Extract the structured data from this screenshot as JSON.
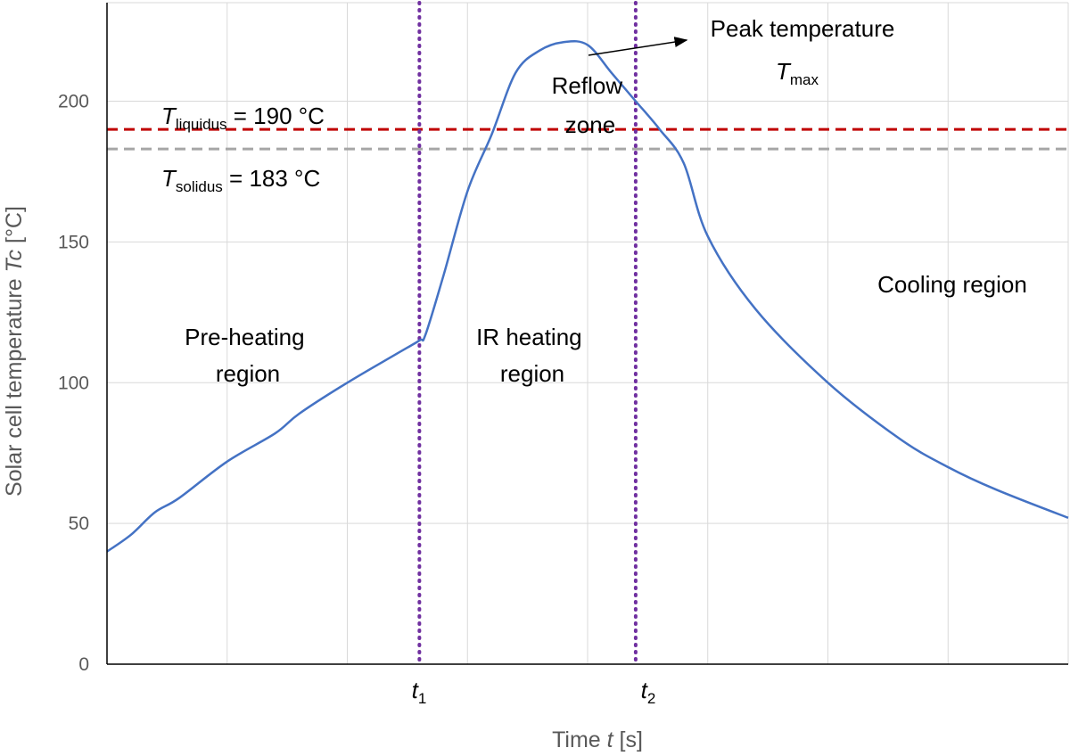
{
  "chart_data": {
    "type": "line",
    "title": "",
    "xlabel": {
      "prefix": "Time ",
      "var": "t",
      "suffix": " [s]"
    },
    "ylabel": {
      "prefix": "Solar cell temperature ",
      "var": "Tc",
      "suffix": " [°C]"
    },
    "xlim": [
      0,
      8
    ],
    "ylim": [
      0,
      235
    ],
    "y_ticks": [
      0,
      50,
      100,
      150,
      200
    ],
    "x_grid": [
      1,
      2,
      3,
      4,
      5,
      6,
      7,
      8
    ],
    "y_grid": [
      50,
      100,
      150,
      200,
      235
    ],
    "grid": true,
    "legend": "none",
    "series": [
      {
        "color": "#4472c4",
        "x": [
          0,
          0.2,
          0.4,
          0.6,
          1.0,
          1.4,
          1.6,
          2.0,
          2.4,
          2.6,
          2.65,
          2.8,
          3.0,
          3.2,
          3.4,
          3.6,
          3.8,
          4.0,
          4.2,
          4.4,
          4.6,
          4.8,
          5.0,
          5.4,
          6.0,
          6.6,
          7.0,
          7.4,
          8.0
        ],
        "y": [
          40,
          46,
          54,
          59,
          72,
          82,
          89,
          100,
          110,
          115,
          117,
          138,
          168,
          188,
          210,
          218,
          221,
          220,
          210,
          200,
          190,
          178,
          152,
          126,
          100,
          80,
          70,
          62,
          52
        ]
      }
    ],
    "reference_lines": [
      {
        "orientation": "horizontal",
        "y": 190,
        "color": "#c00000",
        "style": "dashed"
      },
      {
        "orientation": "horizontal",
        "y": 183,
        "color": "#a6a6a6",
        "style": "dashed"
      },
      {
        "orientation": "vertical",
        "x": 2.6,
        "color": "#7030a0",
        "style": "dotted"
      },
      {
        "orientation": "vertical",
        "x": 4.4,
        "color": "#7030a0",
        "style": "dotted"
      }
    ],
    "x_marker_labels": [
      {
        "x": 2.6,
        "var": "t",
        "sub": "1"
      },
      {
        "x": 4.4,
        "var": "t",
        "sub": "2"
      }
    ],
    "annotations": {
      "liquidus": {
        "var": "T",
        "sub": "liquidus",
        "text": " =  190 °C"
      },
      "solidus": {
        "var": "T",
        "sub": "solidus",
        "text": " =  183 °C"
      },
      "peak_line1": "Peak temperature",
      "peak_line2": {
        "var": "T",
        "sub": "max"
      },
      "reflow": [
        "Reflow",
        "zone"
      ],
      "preheat": [
        "Pre-heating",
        "region"
      ],
      "ir": [
        "IR heating",
        "region"
      ],
      "cooling": "Cooling region"
    }
  }
}
